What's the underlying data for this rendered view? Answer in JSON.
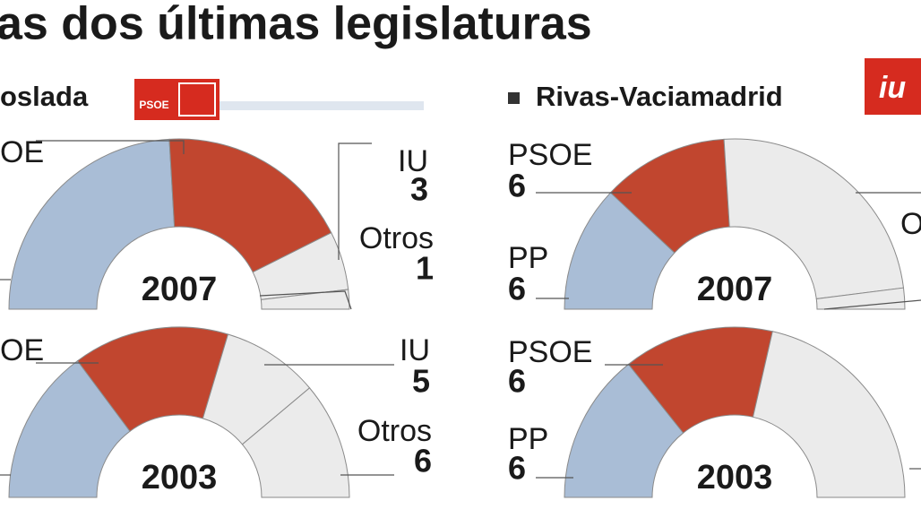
{
  "title": "as dos últimas legislaturas",
  "headers": [
    {
      "name": "oslada",
      "logo": "PSOE"
    },
    {
      "name": "Rivas-Vaciamadrid",
      "logo": "iu"
    }
  ],
  "chart_data": [
    {
      "type": "semicircle",
      "title": "2007",
      "categories": [
        null,
        "OE",
        "IU",
        "Otros"
      ],
      "values": [
        13,
        10,
        3,
        1
      ],
      "colors": [
        "#a9bdd6",
        "#c1462f",
        "#ebebeb",
        "#ebebeb"
      ]
    },
    {
      "type": "semicircle",
      "title": "2003",
      "categories": [
        null,
        "OE",
        "IU",
        "Otros"
      ],
      "values": [
        8,
        8,
        5,
        6
      ],
      "colors": [
        "#a9bdd6",
        "#c1462f",
        "#ebebeb",
        "#ebebeb"
      ]
    },
    {
      "type": "semicircle",
      "title": "2007",
      "categories": [
        "PP",
        "PSOE",
        null,
        "O"
      ],
      "values": [
        6,
        6,
        12,
        1
      ],
      "colors": [
        "#a9bdd6",
        "#c1462f",
        "#ebebeb",
        "#ebebeb"
      ]
    },
    {
      "type": "semicircle",
      "title": "2003",
      "categories": [
        "PP",
        "PSOE",
        null
      ],
      "values": [
        6,
        6,
        9
      ],
      "colors": [
        "#a9bdd6",
        "#c1462f",
        "#ebebeb"
      ]
    }
  ]
}
